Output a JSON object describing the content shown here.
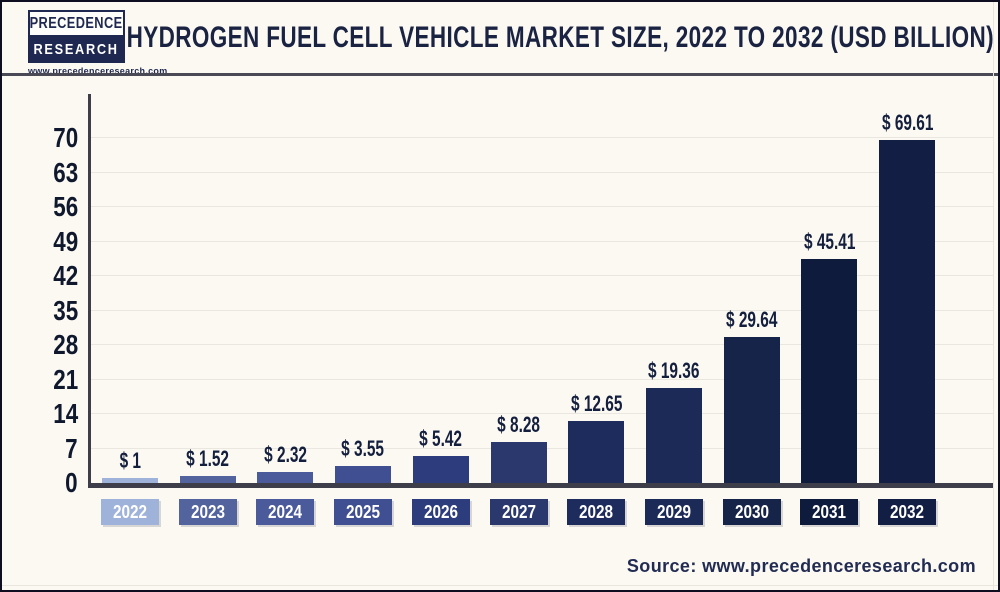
{
  "header": {
    "logo_line1": "PRECEDENCE",
    "logo_line2": "RESEARCH",
    "logo_url": "www.precedenceresearch.com",
    "title": "HYDROGEN FUEL CELL VEHICLE MARKET SIZE, 2022 TO 2032 (USD BILLION)"
  },
  "chart_data": {
    "type": "bar",
    "title": "Hydrogen Fuel Cell Vehicle Market Size, 2022 to 2032 (USD Billion)",
    "unit": "USD Billion",
    "categories": [
      "2022",
      "2023",
      "2024",
      "2025",
      "2026",
      "2027",
      "2028",
      "2029",
      "2030",
      "2031",
      "2032"
    ],
    "values": [
      1,
      1.52,
      2.32,
      3.55,
      5.42,
      8.28,
      12.65,
      19.36,
      29.64,
      45.41,
      69.61
    ],
    "value_labels": [
      "$ 1",
      "$ 1.52",
      "$ 2.32",
      "$ 3.55",
      "$ 5.42",
      "$ 8.28",
      "$ 12.65",
      "$ 19.36",
      "$ 29.64",
      "$ 45.41",
      "$ 69.61"
    ],
    "bar_colors": [
      "#9fb2da",
      "#52639e",
      "#4a5a9b",
      "#404f92",
      "#2d3c7c",
      "#2a386e",
      "#1e2c5d",
      "#1c2a58",
      "#172449",
      "#0f1b3c",
      "#131e45"
    ],
    "y_ticks": [
      0,
      7,
      14,
      21,
      28,
      35,
      42,
      49,
      56,
      63,
      70
    ],
    "ylim": [
      0,
      70
    ],
    "xlabel": "",
    "ylabel": "",
    "grid": true,
    "legend": "none"
  },
  "footer": {
    "source": "Source: www.precedenceresearch.com"
  }
}
